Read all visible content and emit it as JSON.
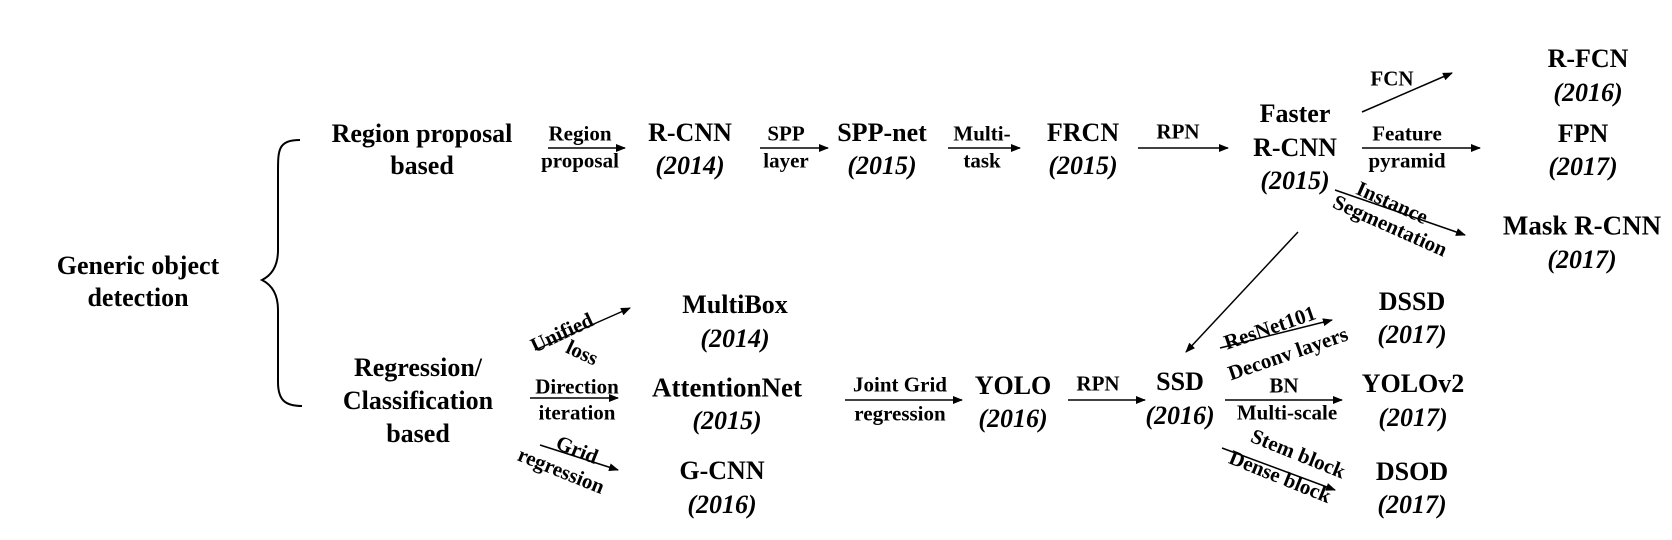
{
  "root": {
    "line1": "Generic object",
    "line2": "detection"
  },
  "branches": {
    "region": {
      "line1": "Region proposal",
      "line2": "based"
    },
    "regression": {
      "line1": "Regression/",
      "line2": "Classification",
      "line3": "based"
    }
  },
  "nodes": {
    "rcnn": {
      "name": "R-CNN",
      "year": "(2014)"
    },
    "sppnet": {
      "name": "SPP-net",
      "year": "(2015)"
    },
    "frcn": {
      "name": "FRCN",
      "year": "(2015)"
    },
    "faster_rcnn": {
      "line1": "Faster",
      "line2": "R-CNN",
      "year": "(2015)"
    },
    "rfcn": {
      "name": "R-FCN",
      "year": "(2016)"
    },
    "fpn": {
      "name": "FPN",
      "year": "(2017)"
    },
    "mask_rcnn": {
      "name": "Mask R-CNN",
      "year": "(2017)"
    },
    "multibox": {
      "name": "MultiBox",
      "year": "(2014)"
    },
    "attentionnet": {
      "name": "AttentionNet",
      "year": "(2015)"
    },
    "gcnn": {
      "name": "G-CNN",
      "year": "(2016)"
    },
    "yolo": {
      "name": "YOLO",
      "year": "(2016)"
    },
    "ssd": {
      "name": "SSD",
      "year": "(2016)"
    },
    "dssd": {
      "name": "DSSD",
      "year": "(2017)"
    },
    "yolov2": {
      "name": "YOLOv2",
      "year": "(2017)"
    },
    "dsod": {
      "name": "DSOD",
      "year": "(2017)"
    }
  },
  "edge_labels": {
    "region_proposal": {
      "line1": "Region",
      "line2": "proposal"
    },
    "spp_layer": {
      "line1": "SPP",
      "line2": "layer"
    },
    "multi_task": {
      "line1": "Multi-",
      "line2": "task"
    },
    "rpn_top": "RPN",
    "fcn": "FCN",
    "feature_pyramid": {
      "line1": "Feature",
      "line2": "pyramid"
    },
    "instance_segmentation": {
      "line1": "Instance",
      "line2": "Segmentation"
    },
    "unified_loss": {
      "line1": "Unified",
      "line2": "loss"
    },
    "direction_iteration": {
      "line1": "Direction",
      "line2": "iteration"
    },
    "grid_regression": {
      "line1": "Grid",
      "line2": "regression"
    },
    "joint_grid_regression": {
      "line1": "Joint Grid",
      "line2": "regression"
    },
    "rpn_bottom": "RPN",
    "resnet_deconv": {
      "line1": "ResNet101",
      "line2": "Deconv layers"
    },
    "bn_multiscale": {
      "line1": "BN",
      "line2": "Multi-scale"
    },
    "stem_dense": {
      "line1": "Stem block",
      "line2": "Dense block"
    }
  }
}
